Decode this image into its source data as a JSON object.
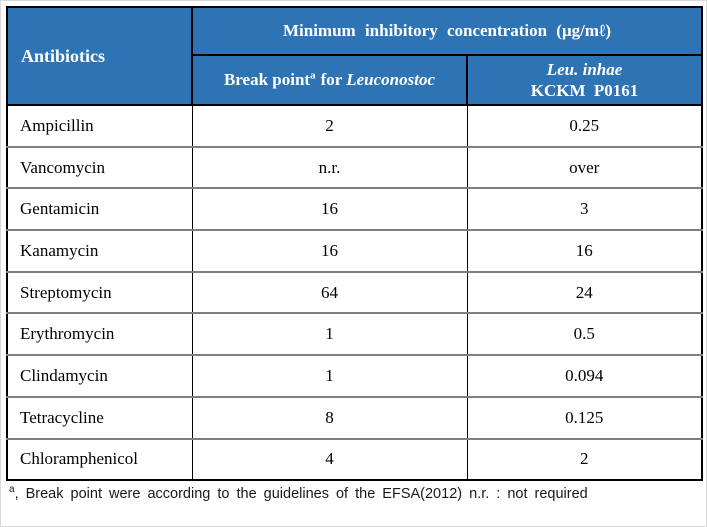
{
  "colors": {
    "header_blue": "#2E74B5",
    "header_text": "#FFFFFF",
    "body_text": "#000000",
    "row_separator_gray": "#7F7F7F",
    "outer_border_black": "#000000"
  },
  "table": {
    "header": {
      "antibiotics": "Antibiotics",
      "mic_title": "Minimum inhibitory concentration (μg/mℓ)",
      "break_point": {
        "prefix": "Break point",
        "sup": "a",
        "middle": "for ",
        "species": "Leuconostoc"
      },
      "strain": {
        "line1": "Leu. inhae",
        "line2": "KCKM P0161"
      }
    },
    "rows": [
      {
        "antibiotic": "Ampicillin",
        "break_point": "2",
        "mic": "0.25"
      },
      {
        "antibiotic": "Vancomycin",
        "break_point": "n.r.",
        "mic": "over"
      },
      {
        "antibiotic": "Gentamicin",
        "break_point": "16",
        "mic": "3"
      },
      {
        "antibiotic": "Kanamycin",
        "break_point": "16",
        "mic": "16"
      },
      {
        "antibiotic": "Streptomycin",
        "break_point": "64",
        "mic": "24"
      },
      {
        "antibiotic": "Erythromycin",
        "break_point": "1",
        "mic": "0.5"
      },
      {
        "antibiotic": "Clindamycin",
        "break_point": "1",
        "mic": "0.094"
      },
      {
        "antibiotic": "Tetracycline",
        "break_point": "8",
        "mic": "0.125"
      },
      {
        "antibiotic": "Chloramphenicol",
        "break_point": "4",
        "mic": "2"
      }
    ]
  },
  "footnote": {
    "sup": "a",
    "text": ", Break point were according to the guidelines of the EFSA(2012)  n.r. : not required"
  },
  "chart_data": {
    "type": "table",
    "title": "Minimum inhibitory concentration (μg/mℓ)",
    "columns": [
      "Antibiotics",
      "Break point for Leuconostoc",
      "Leu. inhae KCKM P0161"
    ],
    "rows": [
      [
        "Ampicillin",
        "2",
        "0.25"
      ],
      [
        "Vancomycin",
        "n.r.",
        "over"
      ],
      [
        "Gentamicin",
        "16",
        "3"
      ],
      [
        "Kanamycin",
        "16",
        "16"
      ],
      [
        "Streptomycin",
        "64",
        "24"
      ],
      [
        "Erythromycin",
        "1",
        "0.5"
      ],
      [
        "Clindamycin",
        "1",
        "0.094"
      ],
      [
        "Tetracycline",
        "8",
        "0.125"
      ],
      [
        "Chloramphenicol",
        "4",
        "2"
      ]
    ]
  }
}
